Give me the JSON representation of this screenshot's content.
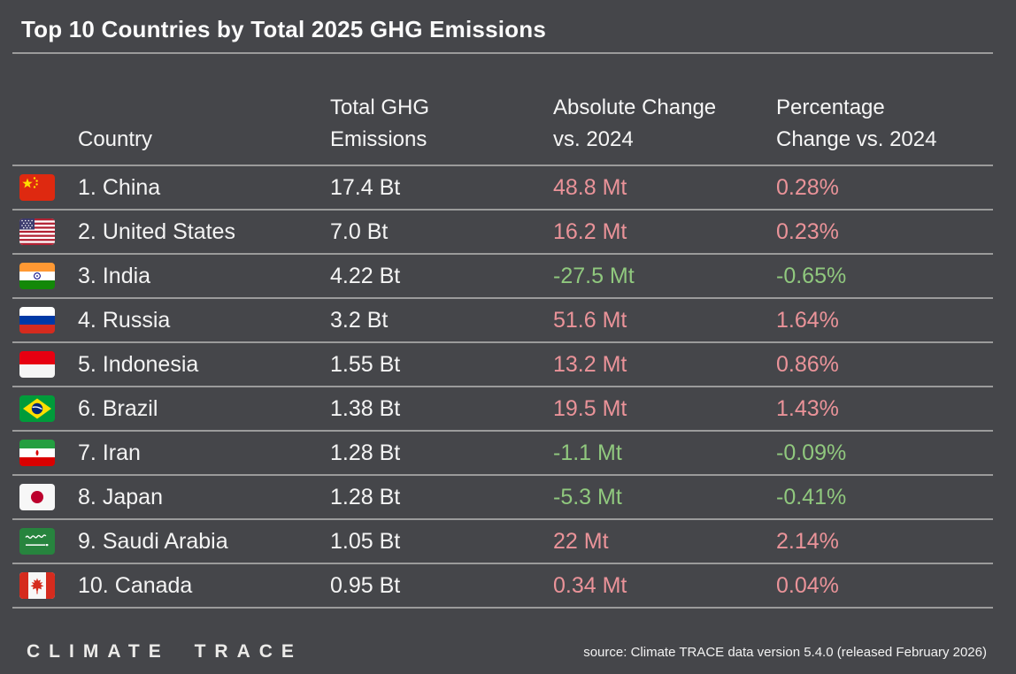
{
  "title": "Top 10 Countries by Total 2025 GHG Emissions",
  "table": {
    "headers": [
      {
        "name": "country",
        "lines": [
          "Country"
        ]
      },
      {
        "name": "total_ghg_emissions",
        "lines": [
          "Total GHG",
          "Emissions"
        ]
      },
      {
        "name": "absolute_change",
        "lines": [
          "Absolute Change",
          "vs. 2024"
        ]
      },
      {
        "name": "percentage_change",
        "lines": [
          "Percentage",
          "Change vs. 2024"
        ]
      }
    ],
    "rows": [
      {
        "rank": "1.",
        "name": "China",
        "flag_icon": "china-flag",
        "total": "17.4 Bt",
        "absolute": "48.8 Mt",
        "percent": "0.28%",
        "direction": "increase"
      },
      {
        "rank": "2.",
        "name": "United States",
        "flag_icon": "us-flag",
        "total": "7.0 Bt",
        "absolute": "16.2 Mt",
        "percent": "0.23%",
        "direction": "increase"
      },
      {
        "rank": "3.",
        "name": "India",
        "flag_icon": "india-flag",
        "total": "4.22 Bt",
        "absolute": "-27.5 Mt",
        "percent": "-0.65%",
        "direction": "decrease"
      },
      {
        "rank": "4.",
        "name": "Russia",
        "flag_icon": "russia-flag",
        "total": "3.2 Bt",
        "absolute": "51.6 Mt",
        "percent": "1.64%",
        "direction": "increase"
      },
      {
        "rank": "5.",
        "name": "Indonesia",
        "flag_icon": "indonesia-flag",
        "total": "1.55 Bt",
        "absolute": "13.2 Mt",
        "percent": "0.86%",
        "direction": "increase"
      },
      {
        "rank": "6.",
        "name": "Brazil",
        "flag_icon": "brazil-flag",
        "total": "1.38 Bt",
        "absolute": "19.5 Mt",
        "percent": "1.43%",
        "direction": "increase"
      },
      {
        "rank": "7.",
        "name": "Iran",
        "flag_icon": "iran-flag",
        "total": "1.28 Bt",
        "absolute": "-1.1 Mt",
        "percent": "-0.09%",
        "direction": "decrease"
      },
      {
        "rank": "8.",
        "name": "Japan",
        "flag_icon": "japan-flag",
        "total": "1.28 Bt",
        "absolute": "-5.3 Mt",
        "percent": "-0.41%",
        "direction": "decrease"
      },
      {
        "rank": "9.",
        "name": "Saudi Arabia",
        "flag_icon": "saudi-arabia-flag",
        "total": "1.05 Bt",
        "absolute": "22 Mt",
        "percent": "2.14%",
        "direction": "increase"
      },
      {
        "rank": "10.",
        "name": "Canada",
        "flag_icon": "canada-flag",
        "total": "0.95 Bt",
        "absolute": "0.34 Mt",
        "percent": "0.04%",
        "direction": "increase"
      }
    ]
  },
  "footer": {
    "logo": "CLIMATE TRACE",
    "source": "source: Climate TRACE data version 5.4.0 (released February 2026)"
  },
  "colors": {
    "background": "#45464a",
    "divider": "#9b9b9b",
    "increase": "#ea9399",
    "decrease": "#90c87e"
  },
  "chart_data": {
    "type": "table",
    "title": "Top 10 Countries by Total 2025 GHG Emissions",
    "columns": [
      "Country",
      "Total GHG Emissions",
      "Absolute Change vs. 2024",
      "Percentage Change vs. 2024"
    ],
    "rows": [
      [
        "1. China",
        "17.4 Bt",
        "48.8 Mt",
        "0.28%"
      ],
      [
        "2. United States",
        "7.0 Bt",
        "16.2 Mt",
        "0.23%"
      ],
      [
        "3. India",
        "4.22 Bt",
        "-27.5 Mt",
        "-0.65%"
      ],
      [
        "4. Russia",
        "3.2 Bt",
        "51.6 Mt",
        "1.64%"
      ],
      [
        "5. Indonesia",
        "1.55 Bt",
        "13.2 Mt",
        "0.86%"
      ],
      [
        "6. Brazil",
        "1.38 Bt",
        "19.5 Mt",
        "1.43%"
      ],
      [
        "7. Iran",
        "1.28 Bt",
        "-1.1 Mt",
        "-0.09%"
      ],
      [
        "8. Japan",
        "1.28 Bt",
        "-5.3 Mt",
        "-0.41%"
      ],
      [
        "9. Saudi Arabia",
        "1.05 Bt",
        "22 Mt",
        "2.14%"
      ],
      [
        "10. Canada",
        "0.95 Bt",
        "0.34 Mt",
        "0.04%"
      ]
    ],
    "value_color_rule": "positive changes shown in salmon #ea9399, negative changes in green #90c87e",
    "units": {
      "total": "Bt (billion tonnes CO2e)",
      "absolute_change": "Mt (million tonnes CO2e)"
    }
  }
}
